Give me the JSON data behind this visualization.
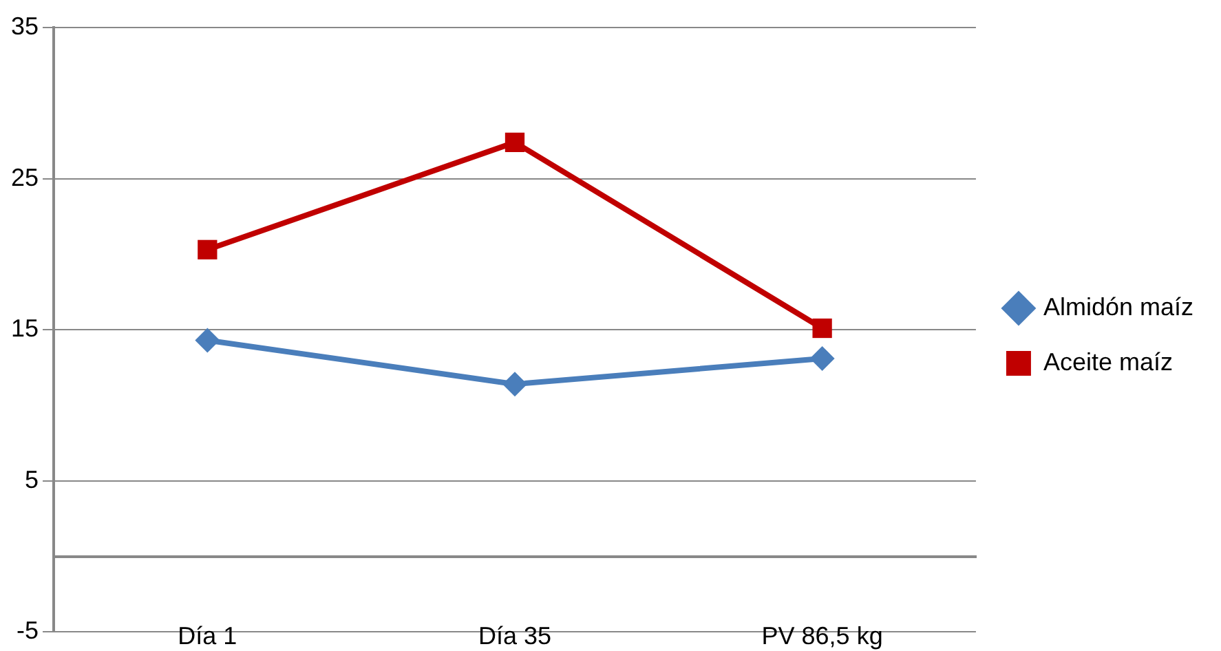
{
  "chart_data": {
    "type": "line",
    "categories": [
      "Día 1",
      "Día 35",
      "PV 86,5 kg"
    ],
    "series": [
      {
        "name": "Almidón maíz",
        "color": "#4a7ebb",
        "marker": "diamond",
        "values": [
          14.3,
          11.4,
          13.1
        ]
      },
      {
        "name": "Aceite maíz",
        "color": "#c00000",
        "marker": "square",
        "values": [
          20.3,
          27.4,
          15.1
        ]
      }
    ],
    "ylim": [
      -5,
      35
    ],
    "yticks": [
      -5,
      5,
      15,
      25,
      35
    ],
    "grid": "y",
    "legend": "right",
    "line_style": "solid"
  }
}
